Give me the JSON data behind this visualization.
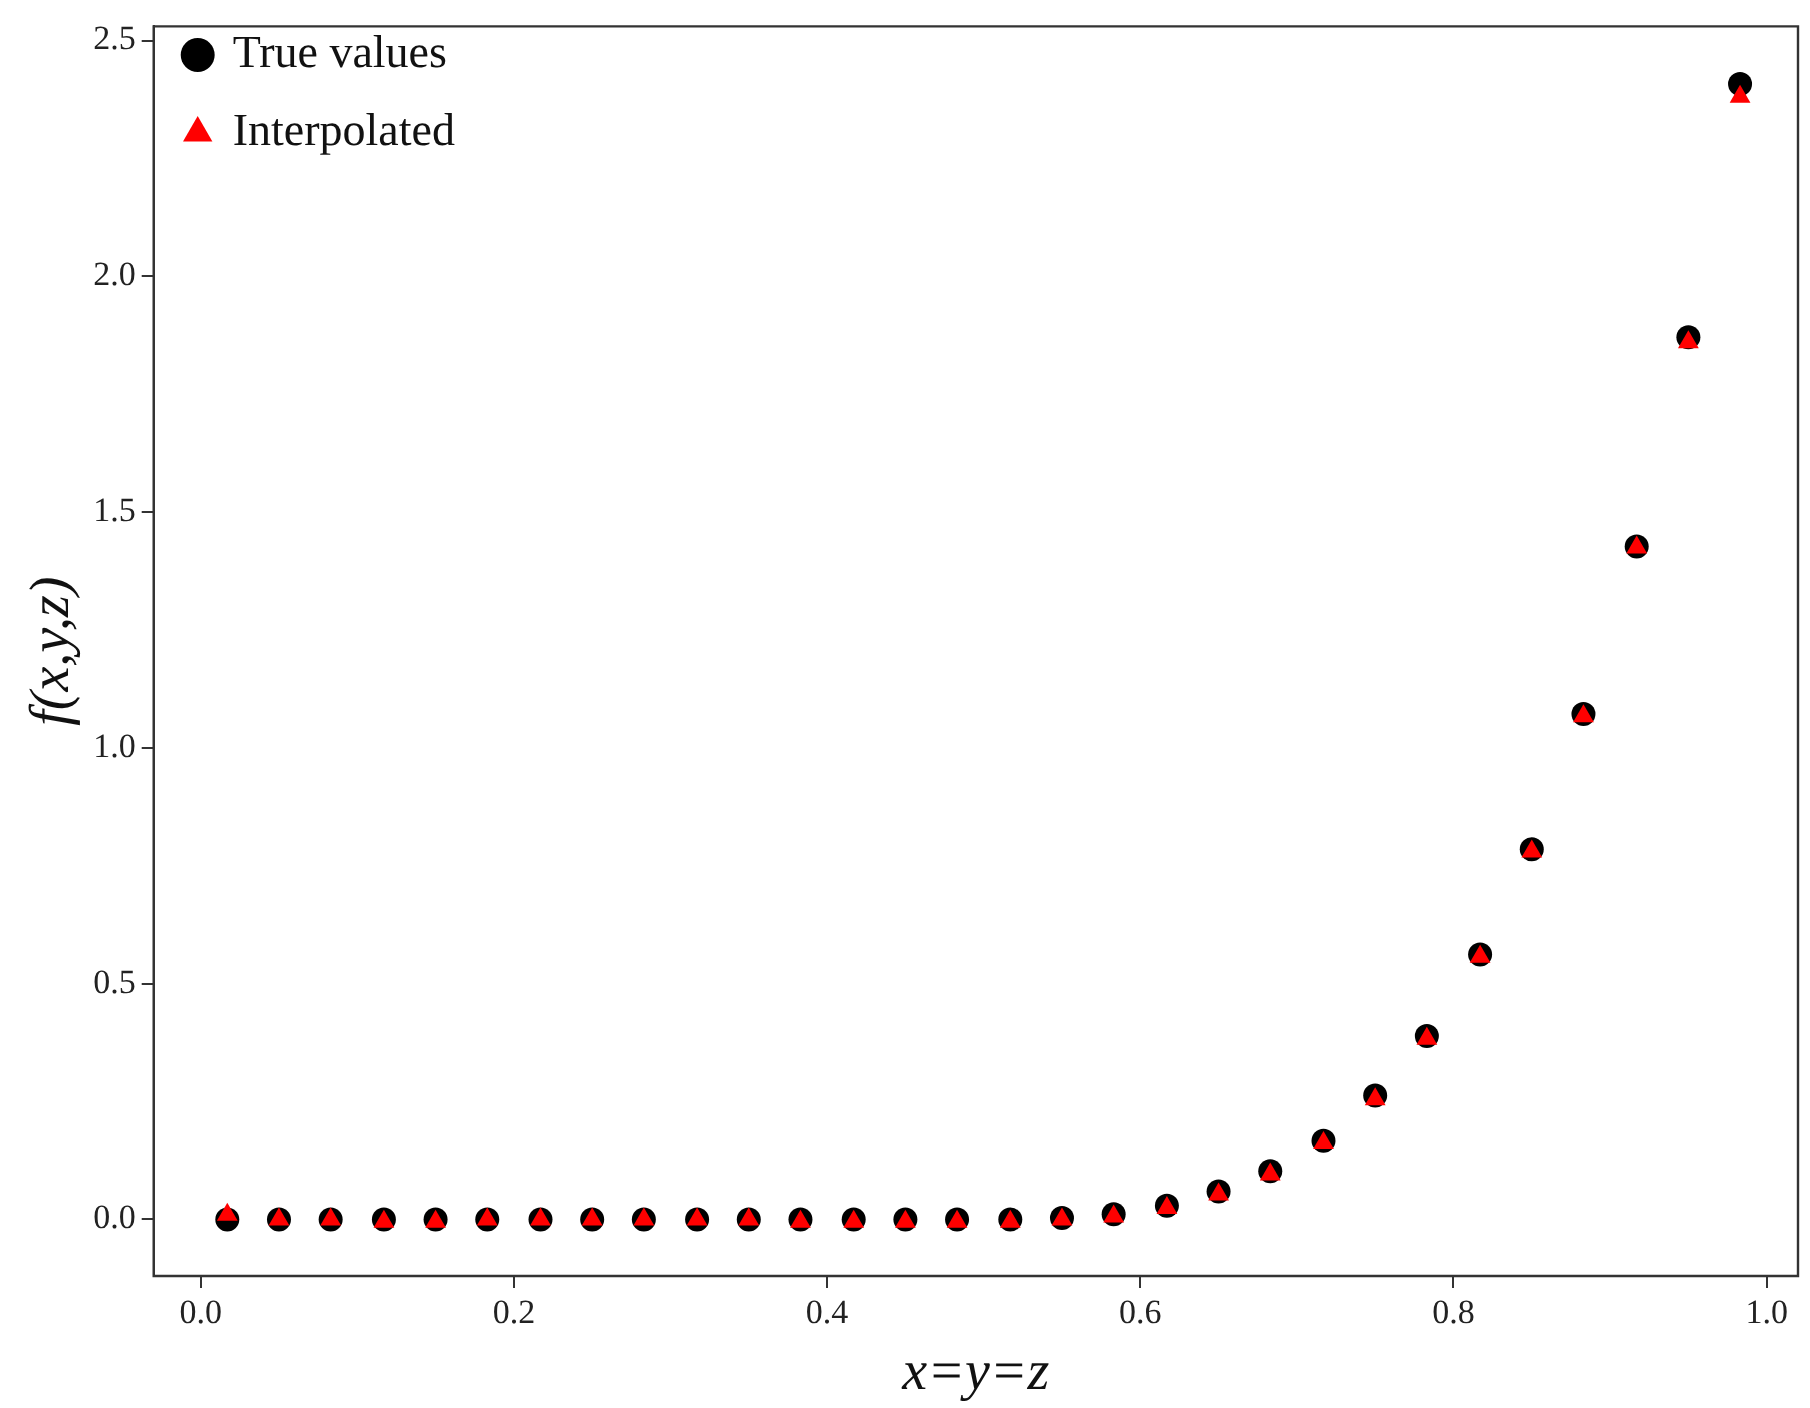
{
  "chart_data": {
    "type": "scatter",
    "xlabel": "x=y=z",
    "ylabel": "f(x,y,z)",
    "xlim": [
      -0.03,
      1.02
    ],
    "xticks": [
      {
        "value": 0,
        "label": "0.0"
      },
      0.2,
      0.4,
      0.6,
      0.8,
      {
        "value": 1,
        "label": "1.0"
      }
    ],
    "ylim": [
      -0.12,
      2.53
    ],
    "yticks": [
      {
        "value": 0,
        "label": "0.0"
      },
      0.5,
      {
        "value": 1,
        "label": "1.0"
      },
      1.5,
      {
        "value": 2,
        "label": "2.0"
      },
      2.5
    ],
    "grid": false,
    "legend": "top left",
    "x": [
      0.017,
      0.05,
      0.083,
      0.117,
      0.15,
      0.183,
      0.217,
      0.25,
      0.283,
      0.317,
      0.35,
      0.383,
      0.417,
      0.45,
      0.483,
      0.517,
      0.55,
      0.583,
      0.617,
      0.65,
      0.683,
      0.717,
      0.75,
      0.783,
      0.817,
      0.85,
      0.883,
      0.917,
      0.95,
      0.983
    ],
    "series": [
      {
        "name": "True values",
        "color": "#000000",
        "marker": "circle",
        "values": [
          0.0,
          0.0,
          0.0,
          0.0,
          0.0,
          0.0,
          0.0,
          0.0,
          0.0,
          0.0,
          0.0,
          0.0,
          0.0,
          0.0,
          0.0,
          0.0,
          0.003,
          0.011,
          0.029,
          0.059,
          0.102,
          0.167,
          0.263,
          0.389,
          0.562,
          0.785,
          1.072,
          1.427,
          1.871,
          2.408
        ]
      },
      {
        "name": "Interpolated",
        "color": "#ff0000",
        "marker": "triangle",
        "values": [
          0.01,
          0.0,
          0.0,
          -0.005,
          -0.005,
          0.0,
          0.0,
          0.0,
          0.0,
          0.0,
          0.0,
          -0.005,
          -0.005,
          -0.005,
          -0.005,
          -0.005,
          0.0,
          0.006,
          0.024,
          0.053,
          0.095,
          0.162,
          0.255,
          0.383,
          0.557,
          0.78,
          1.067,
          1.425,
          1.86,
          2.381
        ]
      }
    ]
  }
}
